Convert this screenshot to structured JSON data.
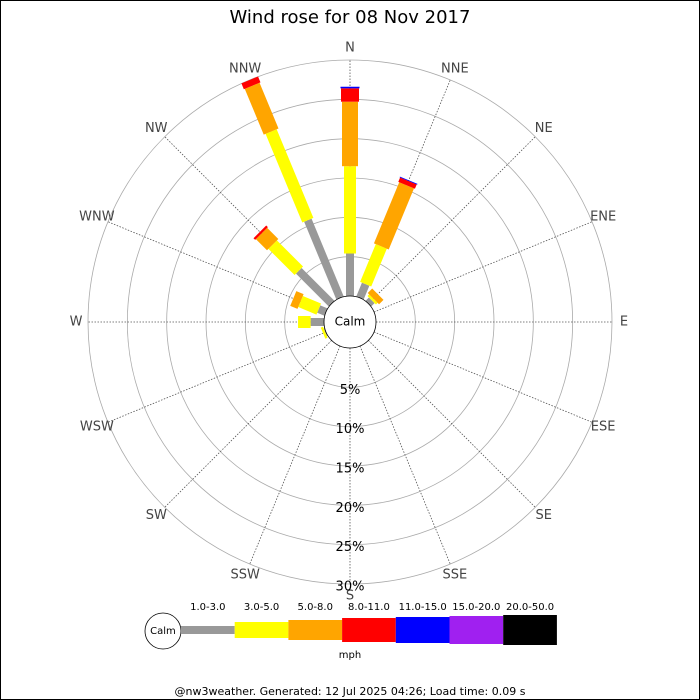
{
  "chart_data": {
    "type": "windrose",
    "title": "Wind rose for 08 Nov 2017",
    "directions": [
      "N",
      "NNE",
      "NE",
      "ENE",
      "E",
      "ESE",
      "SE",
      "SSE",
      "S",
      "SSW",
      "SW",
      "WSW",
      "W",
      "WNW",
      "NW",
      "NNW"
    ],
    "series": [
      {
        "name": "1.0-3.0",
        "color": "#999999",
        "values": [
          5.4,
          1.9,
          0.6,
          0,
          0,
          0,
          0,
          0,
          0,
          0,
          0,
          0.1,
          1.7,
          1.0,
          5.9,
          10.7
        ]
      },
      {
        "name": "3.0-5.0",
        "color": "#ffff00",
        "values": [
          11.1,
          5.2,
          0.3,
          0,
          0,
          0,
          0,
          0,
          0,
          0,
          0,
          0.3,
          1.6,
          2.5,
          4.7,
          12.2
        ]
      },
      {
        "name": "5.0-8.0",
        "color": "#ffa500",
        "values": [
          8.2,
          8.4,
          0.8,
          0,
          0,
          0,
          0,
          0,
          0,
          0,
          0,
          0,
          0,
          1.0,
          2.0,
          6.3
        ]
      },
      {
        "name": "8.0-11.0",
        "color": "#ff0000",
        "values": [
          1.7,
          0.6,
          0,
          0,
          0,
          0,
          0,
          0,
          0,
          0,
          0,
          0,
          0,
          0,
          0.3,
          0.8
        ]
      },
      {
        "name": "11.0-15.0",
        "color": "#0000ff",
        "values": [
          0.2,
          0.1,
          0,
          0,
          0,
          0,
          0,
          0,
          0,
          0,
          0,
          0,
          0,
          0,
          0,
          0
        ]
      },
      {
        "name": "15.0-20.0",
        "color": "#a020f0",
        "values": [
          0,
          0,
          0,
          0,
          0,
          0,
          0,
          0,
          0,
          0,
          0,
          0,
          0,
          0,
          0,
          0
        ]
      },
      {
        "name": "20.0-50.0",
        "color": "#000000",
        "values": [
          0,
          0,
          0,
          0,
          0,
          0,
          0,
          0,
          0,
          0,
          0,
          0,
          0,
          0,
          0,
          0
        ]
      }
    ],
    "rlim": [
      0,
      30
    ],
    "rticks": [
      {
        "value": 5,
        "label": "5%"
      },
      {
        "value": 10,
        "label": "10%"
      },
      {
        "value": 15,
        "label": "15%"
      },
      {
        "value": 20,
        "label": "20%"
      },
      {
        "value": 25,
        "label": "25%"
      },
      {
        "value": 30,
        "label": "30%"
      }
    ],
    "calm_label": "Calm",
    "legend_calm_label": "Calm",
    "legend_unit": "mph",
    "footer": "@nw3weather. Generated: 12 Jul 2025 04:26; Load time: 0.09 s"
  }
}
